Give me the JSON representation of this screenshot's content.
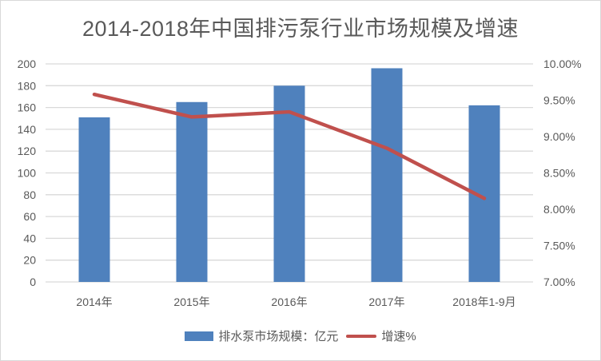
{
  "chart_data": {
    "type": "bar+line",
    "title": "2014-2018年中国排污泵行业市场规模及增速",
    "categories": [
      "2014年",
      "2015年",
      "2016年",
      "2017年",
      "2018年1-9月"
    ],
    "series": [
      {
        "name": "排水泵市场规模：亿元",
        "type": "bar",
        "axis": "left",
        "color": "#4f81bd",
        "values": [
          151,
          165,
          180,
          196,
          162
        ]
      },
      {
        "name": "增速%",
        "type": "line",
        "axis": "right",
        "color": "#c0504d",
        "values": [
          9.58,
          9.27,
          9.34,
          8.84,
          8.15
        ]
      }
    ],
    "left_axis": {
      "min": 0,
      "max": 200,
      "step": 20,
      "ticks": [
        "0",
        "20",
        "40",
        "60",
        "80",
        "100",
        "120",
        "140",
        "160",
        "180",
        "200"
      ]
    },
    "right_axis": {
      "min": 7.0,
      "max": 10.0,
      "step": 0.5,
      "ticks": [
        "7.00%",
        "7.50%",
        "8.00%",
        "8.50%",
        "9.00%",
        "9.50%",
        "10.00%"
      ]
    },
    "xlabel": "",
    "ylabel": "",
    "grid": true,
    "legend_position": "bottom"
  },
  "legend": {
    "bar_label": "排水泵市场规模：亿元",
    "line_label": "增速%"
  }
}
